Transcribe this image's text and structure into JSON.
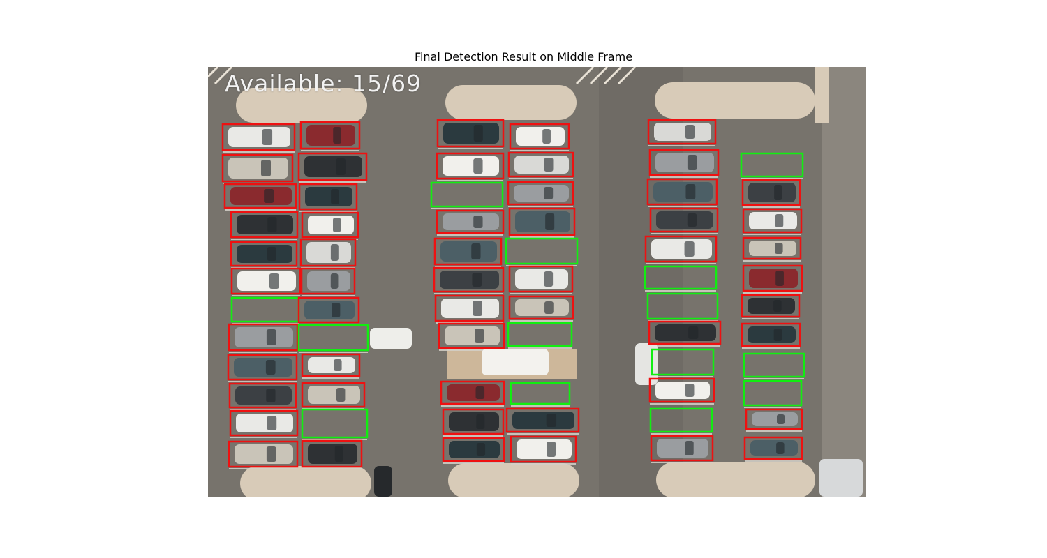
{
  "figure": {
    "title": "Final Detection Result on Middle Frame"
  },
  "overlay": {
    "availability_text": "Available: 15/69"
  },
  "colors": {
    "occupied": "#ee1111",
    "available": "#11ee11",
    "asphalt": "#77736c",
    "curb": "#d8cbb8"
  }
}
